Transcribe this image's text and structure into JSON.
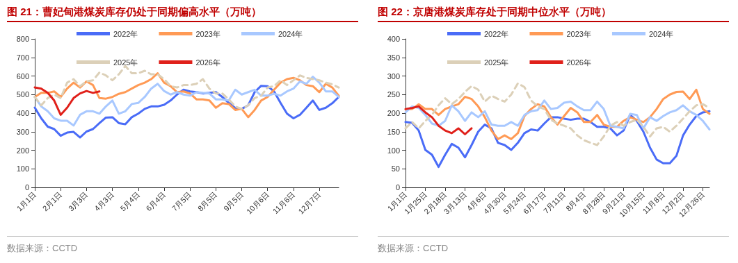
{
  "chart_data": [
    {
      "type": "line",
      "title": "图 21：曹妃甸港煤炭库存仍处于同期偏高水平（万吨）",
      "annotations": [
        "数据来源：CCTD"
      ],
      "categories": [
        "1月1日",
        null,
        null,
        null,
        "2月1日",
        null,
        null,
        null,
        "3月3日",
        null,
        null,
        null,
        "4月3日",
        null,
        null,
        null,
        "5月4日",
        null,
        null,
        null,
        "6月4日",
        null,
        null,
        null,
        "7月5日",
        null,
        null,
        null,
        "8月5日",
        null,
        null,
        null,
        "9月5日",
        null,
        null,
        null,
        "10月6日",
        null,
        null,
        null,
        "11月6日",
        null,
        null,
        null,
        "12月7日",
        null,
        null,
        null
      ],
      "ylim": [
        0,
        800
      ],
      "yticks": [
        0,
        100,
        200,
        300,
        400,
        500,
        600,
        700,
        800
      ],
      "grid": false,
      "legend": "top",
      "marker": "none",
      "line_style": "solid",
      "series": [
        {
          "name": "2022年",
          "color": "#4a6cf7",
          "values": [
            430,
            372,
            327,
            314,
            278,
            295,
            299,
            269,
            301,
            314,
            346,
            376,
            378,
            346,
            340,
            378,
            397,
            423,
            436,
            436,
            445,
            468,
            500,
            526,
            517,
            513,
            506,
            509,
            513,
            487,
            455,
            427,
            423,
            442,
            513,
            547,
            545,
            517,
            455,
            397,
            372,
            391,
            429,
            468,
            417,
            429,
            453,
            487
          ]
        },
        {
          "name": "2023年",
          "color": "#ff9a55",
          "values": [
            487,
            509,
            509,
            517,
            487,
            532,
            564,
            538,
            571,
            551,
            481,
            478,
            487,
            504,
            513,
            532,
            551,
            564,
            583,
            615,
            564,
            545,
            513,
            517,
            506,
            474,
            474,
            468,
            429,
            453,
            449,
            417,
            423,
            378,
            417,
            468,
            487,
            526,
            564,
            583,
            590,
            577,
            551,
            545,
            513,
            558,
            538,
            494
          ]
        },
        {
          "name": "2024年",
          "color": "#a8c8ff",
          "values": [
            487,
            436,
            410,
            372,
            359,
            359,
            333,
            391,
            410,
            410,
            397,
            436,
            468,
            397,
            410,
            449,
            455,
            487,
            532,
            558,
            519,
            500,
            513,
            500,
            494,
            513,
            509,
            506,
            474,
            474,
            468,
            526,
            500,
            513,
            526,
            494,
            494,
            504,
            494,
            517,
            532,
            571,
            558,
            596,
            564,
            517,
            517,
            487
          ]
        },
        {
          "name": "2025年",
          "color": "#dcd0b8",
          "line_style": "dashed",
          "values": [
            487,
            442,
            481,
            500,
            481,
            564,
            583,
            545,
            571,
            577,
            619,
            603,
            577,
            609,
            654,
            615,
            615,
            628,
            609,
            609,
            583,
            545,
            538,
            551,
            551,
            558,
            583,
            532,
            506,
            506,
            474,
            436,
            423,
            442,
            481,
            494,
            538,
            545,
            577,
            551,
            577,
            603,
            590,
            583,
            577,
            564,
            555,
            538
          ]
        },
        {
          "name": "2026年",
          "color": "#e0201a",
          "values": [
            538,
            532,
            509,
            468,
            391,
            429,
            481,
            506,
            519,
            509,
            517,
            null,
            null,
            null,
            null,
            null,
            null,
            null,
            null,
            null,
            null,
            null,
            null,
            null,
            null,
            null,
            null,
            null,
            null,
            null,
            null,
            null,
            null,
            null,
            null,
            null,
            null,
            null,
            null,
            null,
            null,
            null,
            null,
            null,
            null,
            null,
            null,
            null
          ]
        }
      ]
    },
    {
      "type": "line",
      "title": "图 22：京唐港煤炭库存处于同期中位水平（万吨）",
      "annotations": [
        "数据来源：CCTD"
      ],
      "categories": [
        "1月1日",
        null,
        null,
        "1月25日",
        null,
        null,
        "2月18日",
        null,
        null,
        "3月13日",
        null,
        null,
        "4月6日",
        null,
        null,
        "4月30日",
        null,
        null,
        "5月24日",
        null,
        null,
        "6月17日",
        null,
        null,
        "7月11日",
        null,
        null,
        "8月4日",
        null,
        null,
        "8月28日",
        null,
        null,
        "9月21日",
        null,
        null,
        "10月15日",
        null,
        null,
        "11月8日",
        null,
        null,
        "12月2日",
        null,
        null,
        "12月26日",
        null
      ],
      "ylim": [
        0,
        400
      ],
      "yticks": [
        0,
        50,
        100,
        150,
        200,
        250,
        300,
        350,
        400
      ],
      "grid": false,
      "legend": "top",
      "marker": "none",
      "line_style": "solid",
      "series": [
        {
          "name": "2022年",
          "color": "#4a6cf7",
          "values": [
            176,
            174,
            153,
            101,
            88,
            55,
            88,
            117,
            107,
            81,
            114,
            150,
            169,
            159,
            120,
            114,
            101,
            120,
            146,
            156,
            153,
            172,
            189,
            189,
            185,
            182,
            185,
            185,
            176,
            163,
            163,
            159,
            140,
            153,
            195,
            179,
            150,
            107,
            75,
            65,
            65,
            85,
            140,
            169,
            192,
            202,
            205
          ]
        },
        {
          "name": "2023年",
          "color": "#ff9a55",
          "values": [
            210,
            211,
            224,
            211,
            211,
            195,
            211,
            218,
            224,
            244,
            238,
            218,
            189,
            153,
            130,
            140,
            130,
            146,
            192,
            211,
            224,
            218,
            189,
            169,
            192,
            214,
            202,
            176,
            176,
            195,
            169,
            163,
            163,
            179,
            189,
            182,
            176,
            189,
            211,
            238,
            250,
            257,
            258,
            238,
            263,
            211,
            198
          ]
        },
        {
          "name": "2024年",
          "color": "#a8c8ff",
          "values": [
            202,
            218,
            214,
            195,
            172,
            166,
            179,
            221,
            205,
            179,
            202,
            189,
            205,
            169,
            166,
            166,
            176,
            166,
            195,
            205,
            208,
            234,
            211,
            214,
            228,
            231,
            218,
            208,
            208,
            231,
            211,
            166,
            163,
            159,
            198,
            195,
            159,
            189,
            179,
            192,
            202,
            208,
            221,
            205,
            195,
            179,
            156
          ]
        },
        {
          "name": "2025年",
          "color": "#dcd0b8",
          "line_style": "dashed",
          "values": [
            159,
            176,
            159,
            179,
            195,
            221,
            240,
            224,
            238,
            257,
            273,
            263,
            231,
            247,
            238,
            231,
            250,
            280,
            270,
            234,
            218,
            211,
            182,
            172,
            166,
            159,
            140,
            127,
            120,
            114,
            137,
            166,
            176,
            166,
            176,
            182,
            163,
            137,
            159,
            163,
            150,
            166,
            185,
            205,
            221,
            224,
            214
          ]
        },
        {
          "name": "2026年",
          "color": "#e0201a",
          "values": [
            211,
            214,
            218,
            202,
            189,
            166,
            153,
            146,
            159,
            143,
            159,
            null,
            null,
            null,
            null,
            null,
            null,
            null,
            null,
            null,
            null,
            null,
            null,
            null,
            null,
            null,
            null,
            null,
            null,
            null,
            null,
            null,
            null,
            null,
            null,
            null,
            null,
            null,
            null,
            null,
            null,
            null,
            null,
            null,
            null,
            null,
            null
          ]
        }
      ]
    }
  ]
}
